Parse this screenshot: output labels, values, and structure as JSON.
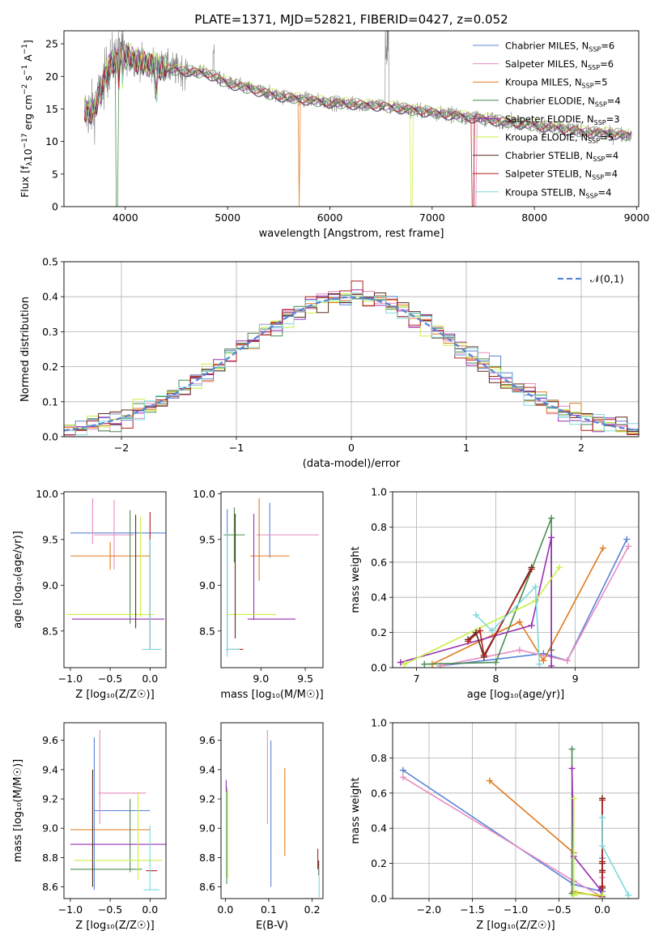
{
  "figure_title": "PLATE=1371, MJD=52821, FIBERID=0427, z=0.052",
  "model_names": [
    "Chabrier MILES",
    "Salpeter MILES",
    "Kroupa MILES",
    "Chabrier ELODIE",
    "Salpeter ELODIE",
    "Kroupa ELODIE",
    "Chabrier STELIB",
    "Salpeter STELIB",
    "Kroupa STELIB"
  ],
  "model_colors": [
    "#5b84d6",
    "#e88cc2",
    "#e07a1f",
    "#4a8c4f",
    "#9b2fb4",
    "#c8f046",
    "#5a2e1e",
    "#b01e1e",
    "#7fd8dc"
  ],
  "chart_data": [
    {
      "id": "spectrum",
      "type": "line",
      "xlabel": "wavelength [Angstrom, rest frame]",
      "ylabel": "Flux [f",
      "xlim": [
        3400,
        9020
      ],
      "ylim": [
        0,
        27
      ],
      "xticks": [
        4000,
        5000,
        6000,
        7000,
        8000,
        9000
      ],
      "yticks": [
        0,
        5,
        10,
        15,
        20,
        25
      ],
      "data_color": "#7f7f7f",
      "data_wavelength_range": [
        3600,
        8950
      ],
      "legend": [
        {
          "name": "Chabrier MILES",
          "nssp": "6"
        },
        {
          "name": "Salpeter MILES",
          "nssp": "6"
        },
        {
          "name": "Kroupa MILES",
          "nssp": "5"
        },
        {
          "name": "Chabrier ELODIE",
          "nssp": "4"
        },
        {
          "name": "Salpeter ELODIE",
          "nssp": "3"
        },
        {
          "name": "Kroupa ELODIE",
          "nssp": "5"
        },
        {
          "name": "Chabrier STELIB",
          "nssp": "4"
        },
        {
          "name": "Salpeter STELIB",
          "nssp": "4"
        },
        {
          "name": "Kroupa STELIB",
          "nssp": "4"
        }
      ],
      "legend_position": "upper-right",
      "continuum": {
        "x": [
          3600,
          3700,
          3850,
          3950,
          4200,
          4500,
          4800,
          5000,
          5500,
          6000,
          6500,
          7000,
          7500,
          8000,
          8500,
          8950
        ],
        "y": [
          14.5,
          15.0,
          22.0,
          23.5,
          22.0,
          21.0,
          20.5,
          19.0,
          17.0,
          16.0,
          15.5,
          14.5,
          13.5,
          12.5,
          11.5,
          11.0
        ]
      }
    },
    {
      "id": "residuals",
      "type": "step",
      "xlabel": "(data-model)/error",
      "ylabel": "Normed distribution",
      "xlim": [
        -2.5,
        2.5
      ],
      "ylim": [
        0,
        0.5
      ],
      "xticks": [
        -2,
        -1,
        0,
        1,
        2
      ],
      "yticks": [
        0.0,
        0.1,
        0.2,
        0.3,
        0.4,
        0.5
      ],
      "grid": true,
      "reference": {
        "name": "𝒩(0,1)",
        "color": "#5b84d6",
        "style": "dashed"
      },
      "legend_position": "upper-right",
      "bin_width": 0.1
    },
    {
      "id": "age_vs_Z",
      "type": "errorbar",
      "xlabel": "Z [log₁₀(Z/Z☉)]",
      "ylabel": "age [log₁₀(age/yr)]",
      "xlim": [
        -1.08,
        0.2
      ],
      "ylim": [
        8.1,
        10.02
      ],
      "xticks": [
        -1.0,
        -0.5,
        0.0
      ],
      "yticks": [
        8.5,
        9.0,
        9.5,
        10.0
      ],
      "points": [
        {
          "model": 0,
          "x": -0.35,
          "xerr": 0.65,
          "y": 9.57,
          "yerr": 0.0
        },
        {
          "model": 1,
          "x": -0.45,
          "xerr": 0.25,
          "y": 9.55,
          "yerr": 0.38
        },
        {
          "model": 2,
          "x": -0.5,
          "xerr": 0.5,
          "y": 9.32,
          "yerr": 0.15
        },
        {
          "model": 3,
          "x": -0.25,
          "xerr": 0.0,
          "y": 9.2,
          "yerr": 0.62
        },
        {
          "model": 4,
          "x": -0.4,
          "xerr": 0.58,
          "y": 8.63,
          "yerr": 0.0
        },
        {
          "model": 5,
          "x": -0.5,
          "xerr": 0.55,
          "y": 8.68,
          "yerr": 0.0
        },
        {
          "model": 6,
          "x": -0.18,
          "xerr": 0.0,
          "y": 9.15,
          "yerr": 0.62
        },
        {
          "model": 7,
          "x": 0.0,
          "xerr": 0.0,
          "y": 9.05,
          "yerr": 0.75
        },
        {
          "model": 8,
          "x": 0.02,
          "xerr": 0.12,
          "y": 8.3,
          "yerr": 0.0
        },
        {
          "model": 1,
          "x": -0.72,
          "xerr": 0.0,
          "y": 9.7,
          "yerr": 0.25
        },
        {
          "model": 8,
          "x": 0.0,
          "xerr": 0.0,
          "y": 8.9,
          "yerr": 0.6
        },
        {
          "model": 5,
          "x": -0.12,
          "xerr": 0.0,
          "y": 9.2,
          "yerr": 0.55
        }
      ]
    },
    {
      "id": "age_vs_mass",
      "type": "errorbar",
      "xlabel": "mass [log₁₀(M/M☉)]",
      "ylabel": "",
      "xlim": [
        8.55,
        9.7
      ],
      "ylim": [
        8.1,
        10.02
      ],
      "xticks": [
        9.0,
        9.5
      ],
      "yticks": [
        8.5,
        9.0,
        9.5,
        10.0
      ],
      "points": [
        {
          "model": 0,
          "x": 9.1,
          "xerr": 0.0,
          "y": 9.6,
          "yerr": 0.3
        },
        {
          "model": 1,
          "x": 9.3,
          "xerr": 0.35,
          "y": 9.55,
          "yerr": 0.0
        },
        {
          "model": 2,
          "x": 8.98,
          "xerr": 0.0,
          "y": 9.5,
          "yerr": 0.45
        },
        {
          "model": 2,
          "x": 9.1,
          "xerr": 0.22,
          "y": 9.32,
          "yerr": 0.0
        },
        {
          "model": 3,
          "x": 8.7,
          "xerr": 0.12,
          "y": 9.55,
          "yerr": 0.3
        },
        {
          "model": 4,
          "x": 8.92,
          "xerr": 0.0,
          "y": 9.2,
          "yerr": 0.58
        },
        {
          "model": 4,
          "x": 9.12,
          "xerr": 0.27,
          "y": 8.63,
          "yerr": 0.0
        },
        {
          "model": 5,
          "x": 8.9,
          "xerr": 0.27,
          "y": 8.68,
          "yerr": 0.0
        },
        {
          "model": 6,
          "x": 8.71,
          "xerr": 0.0,
          "y": 9.1,
          "yerr": 0.68
        },
        {
          "model": 7,
          "x": 8.72,
          "xerr": 0.08,
          "y": 8.3,
          "yerr": 0.0
        },
        {
          "model": 0,
          "x": 8.62,
          "xerr": 0.0,
          "y": 9.05,
          "yerr": 0.78
        },
        {
          "model": 8,
          "x": 8.62,
          "xerr": 0.0,
          "y": 8.9,
          "yerr": 0.68
        },
        {
          "model": 8,
          "x": 8.68,
          "xerr": 0.08,
          "y": 8.3,
          "yerr": 0.0
        }
      ]
    },
    {
      "id": "weight_vs_age",
      "type": "line",
      "xlabel": "age [log₁₀(age/yr)]",
      "ylabel": "mass weight",
      "xlim": [
        6.7,
        9.8
      ],
      "ylim": [
        0,
        1
      ],
      "xticks": [
        7,
        8,
        9
      ],
      "yticks": [
        0.0,
        0.2,
        0.4,
        0.6,
        0.8,
        1.0
      ],
      "grid": true,
      "series": [
        {
          "model": 0,
          "x": [
            7.3,
            8.6,
            8.9,
            9.65
          ],
          "y": [
            0.01,
            0.08,
            0.04,
            0.73
          ]
        },
        {
          "model": 1,
          "x": [
            7.3,
            8.3,
            8.9,
            9.67
          ],
          "y": [
            0.01,
            0.1,
            0.04,
            0.69
          ]
        },
        {
          "model": 2,
          "x": [
            7.2,
            8.3,
            8.6,
            9.35
          ],
          "y": [
            0.02,
            0.26,
            0.04,
            0.68
          ]
        },
        {
          "model": 3,
          "x": [
            7.1,
            8.0,
            8.7,
            8.7
          ],
          "y": [
            0.02,
            0.03,
            0.85,
            0.1
          ]
        },
        {
          "model": 4,
          "x": [
            6.8,
            8.45,
            8.7,
            8.7
          ],
          "y": [
            0.03,
            0.24,
            0.74,
            0.01
          ]
        },
        {
          "model": 5,
          "x": [
            6.85,
            8.5,
            8.8
          ],
          "y": [
            0.02,
            0.38,
            0.57
          ]
        },
        {
          "model": 6,
          "x": [
            7.65,
            7.75,
            7.85,
            8.45
          ],
          "y": [
            0.16,
            0.2,
            0.06,
            0.57
          ]
        },
        {
          "model": 7,
          "x": [
            7.65,
            7.8,
            7.85,
            8.45
          ],
          "y": [
            0.15,
            0.21,
            0.07,
            0.56
          ]
        },
        {
          "model": 8,
          "x": [
            7.75,
            7.95,
            8.5,
            8.55
          ],
          "y": [
            0.3,
            0.21,
            0.46,
            0.02
          ]
        }
      ]
    },
    {
      "id": "mass_vs_Z",
      "type": "errorbar",
      "xlabel": "Z [log₁₀(Z/Z☉)]",
      "ylabel": "mass [log₁₀(M/M☉)]",
      "xlim": [
        -1.08,
        0.2
      ],
      "ylim": [
        8.52,
        9.72
      ],
      "xticks": [
        -1.0,
        -0.5,
        0.0
      ],
      "yticks": [
        8.6,
        8.8,
        9.0,
        9.2,
        9.4,
        9.6
      ],
      "points": [
        {
          "model": 0,
          "x": -0.35,
          "xerr": 0.35,
          "y": 9.12,
          "yerr": 0.0
        },
        {
          "model": 0,
          "x": -0.7,
          "xerr": 0.0,
          "y": 9.1,
          "yerr": 0.52
        },
        {
          "model": 1,
          "x": -0.35,
          "xerr": 0.3,
          "y": 9.24,
          "yerr": 0.0
        },
        {
          "model": 1,
          "x": -0.63,
          "xerr": 0.0,
          "y": 9.35,
          "yerr": 0.32
        },
        {
          "model": 2,
          "x": -0.5,
          "xerr": 0.5,
          "y": 8.99,
          "yerr": 0.0
        },
        {
          "model": 3,
          "x": -0.55,
          "xerr": 0.45,
          "y": 8.72,
          "yerr": 0.0
        },
        {
          "model": 3,
          "x": -0.25,
          "xerr": 0.0,
          "y": 8.95,
          "yerr": 0.25
        },
        {
          "model": 4,
          "x": -0.4,
          "xerr": 0.6,
          "y": 8.89,
          "yerr": 0.0
        },
        {
          "model": 5,
          "x": -0.4,
          "xerr": 0.55,
          "y": 8.78,
          "yerr": 0.0
        },
        {
          "model": 5,
          "x": -0.15,
          "xerr": 0.0,
          "y": 8.95,
          "yerr": 0.3
        },
        {
          "model": 6,
          "x": -0.72,
          "xerr": 0.0,
          "y": 9.0,
          "yerr": 0.4
        },
        {
          "model": 7,
          "x": 0.02,
          "xerr": 0.07,
          "y": 8.71,
          "yerr": 0.0
        },
        {
          "model": 8,
          "x": 0.02,
          "xerr": 0.1,
          "y": 8.58,
          "yerr": 0.0
        },
        {
          "model": 8,
          "x": 0.0,
          "xerr": 0.0,
          "y": 8.8,
          "yerr": 0.22
        }
      ]
    },
    {
      "id": "mass_vs_ebv",
      "type": "errorbar",
      "xlabel": "E(B-V)",
      "ylabel": "",
      "xlim": [
        -0.01,
        0.225
      ],
      "ylim": [
        8.52,
        9.72
      ],
      "xticks": [
        0.0,
        0.1,
        0.2
      ],
      "yticks": [
        8.6,
        8.8,
        9.0,
        9.2,
        9.4,
        9.6
      ],
      "points": [
        {
          "model": 0,
          "x": 0.105,
          "xerr": 0.0,
          "y": 9.1,
          "yerr": 0.5
        },
        {
          "model": 1,
          "x": 0.097,
          "xerr": 0.0,
          "y": 9.35,
          "yerr": 0.32
        },
        {
          "model": 2,
          "x": 0.137,
          "xerr": 0.0,
          "y": 9.11,
          "yerr": 0.3
        },
        {
          "model": 3,
          "x": 0.003,
          "xerr": 0.0,
          "y": 8.95,
          "yerr": 0.33
        },
        {
          "model": 4,
          "x": 0.002,
          "xerr": 0.0,
          "y": 9.29,
          "yerr": 0.04
        },
        {
          "model": 5,
          "x": 0.005,
          "xerr": 0.0,
          "y": 8.96,
          "yerr": 0.3
        },
        {
          "model": 6,
          "x": 0.215,
          "xerr": 0.0,
          "y": 8.73,
          "yerr": 0.05
        },
        {
          "model": 7,
          "x": 0.213,
          "xerr": 0.0,
          "y": 8.79,
          "yerr": 0.07
        },
        {
          "model": 8,
          "x": 0.216,
          "xerr": 0.0,
          "y": 8.63,
          "yerr": 0.1
        }
      ]
    },
    {
      "id": "weight_vs_Z",
      "type": "line",
      "xlabel": "Z [log₁₀(Z/Z☉)]",
      "ylabel": "mass weight",
      "xlim": [
        -2.42,
        0.42
      ],
      "ylim": [
        0,
        1
      ],
      "xticks": [
        -2.0,
        -1.5,
        -1.0,
        -0.5,
        0.0
      ],
      "yticks": [
        0.0,
        0.2,
        0.4,
        0.6,
        0.8,
        1.0
      ],
      "grid": true,
      "series": [
        {
          "model": 0,
          "x": [
            -2.3,
            -0.33,
            0.0,
            0.0
          ],
          "y": [
            0.73,
            0.08,
            0.04,
            0.23
          ]
        },
        {
          "model": 1,
          "x": [
            -2.3,
            -0.33,
            0.0,
            0.0
          ],
          "y": [
            0.69,
            0.1,
            0.01,
            0.12
          ]
        },
        {
          "model": 2,
          "x": [
            -1.3,
            -0.33,
            -0.33,
            0.0
          ],
          "y": [
            0.67,
            0.26,
            0.04,
            0.01
          ]
        },
        {
          "model": 3,
          "x": [
            -0.35,
            -0.35,
            -0.33,
            0.0
          ],
          "y": [
            0.85,
            0.03,
            0.03,
            0.02
          ]
        },
        {
          "model": 4,
          "x": [
            -0.35,
            -0.33,
            -0.02,
            0.0
          ],
          "y": [
            0.74,
            0.24,
            0.05,
            0.01
          ]
        },
        {
          "model": 5,
          "x": [
            -0.33,
            -0.33,
            -0.3,
            0.0
          ],
          "y": [
            0.57,
            0.02,
            0.03,
            0.02
          ]
        },
        {
          "model": 6,
          "x": [
            0.0,
            0.0,
            0.0,
            0.0
          ],
          "y": [
            0.57,
            0.2,
            0.16,
            0.06
          ]
        },
        {
          "model": 7,
          "x": [
            0.0,
            0.0,
            0.0,
            0.0
          ],
          "y": [
            0.56,
            0.21,
            0.15,
            0.07
          ]
        },
        {
          "model": 8,
          "x": [
            0.0,
            0.0,
            0.3,
            0.3
          ],
          "y": [
            0.46,
            0.3,
            0.02,
            0.02
          ]
        }
      ]
    }
  ]
}
